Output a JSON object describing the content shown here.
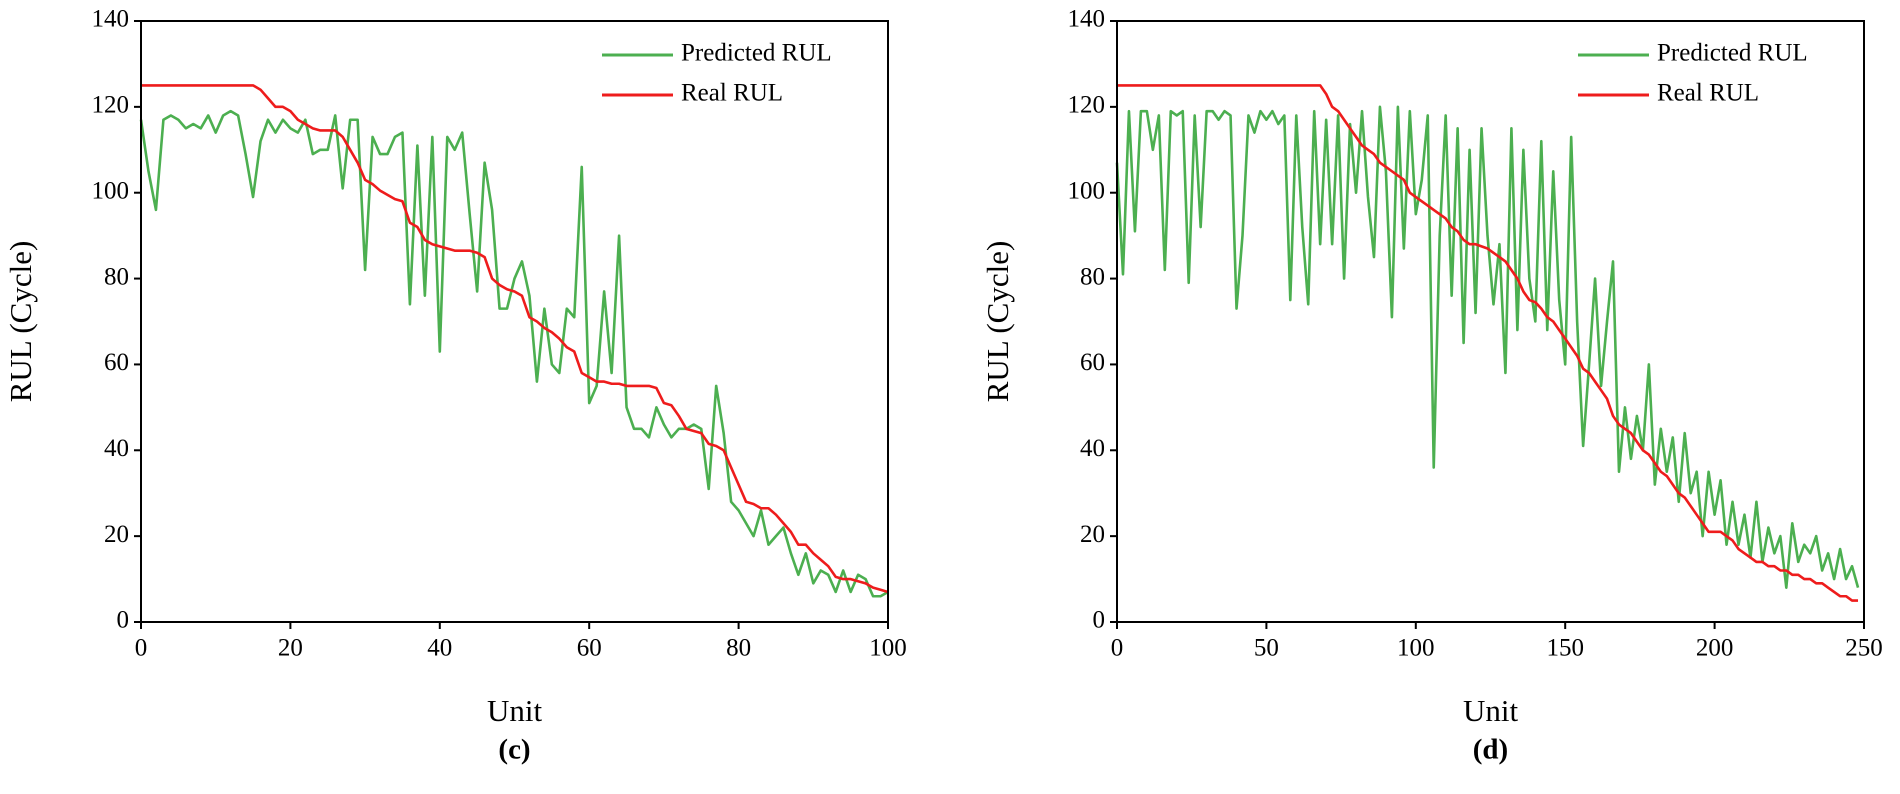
{
  "chart_data": [
    {
      "type": "line",
      "caption": "(c)",
      "xlabel": "Unit",
      "ylabel": "RUL (Cycle)",
      "legend": "upper right",
      "xlim": [
        0,
        100
      ],
      "ylim": [
        0,
        140
      ],
      "xticks": [
        0,
        20,
        40,
        60,
        80,
        100
      ],
      "yticks": [
        0,
        20,
        40,
        60,
        80,
        100,
        120,
        140
      ],
      "x": [
        0,
        1,
        2,
        3,
        4,
        5,
        6,
        7,
        8,
        9,
        10,
        11,
        12,
        13,
        14,
        15,
        16,
        17,
        18,
        19,
        20,
        21,
        22,
        23,
        24,
        25,
        26,
        27,
        28,
        29,
        30,
        31,
        32,
        33,
        34,
        35,
        36,
        37,
        38,
        39,
        40,
        41,
        42,
        43,
        44,
        45,
        46,
        47,
        48,
        49,
        50,
        51,
        52,
        53,
        54,
        55,
        56,
        57,
        58,
        59,
        60,
        61,
        62,
        63,
        64,
        65,
        66,
        67,
        68,
        69,
        70,
        71,
        72,
        73,
        74,
        75,
        76,
        77,
        78,
        79,
        80,
        81,
        82,
        83,
        84,
        85,
        86,
        87,
        88,
        89,
        90,
        91,
        92,
        93,
        94,
        95,
        96,
        97,
        98,
        99,
        100
      ],
      "series": [
        {
          "name": "Predicted RUL",
          "color": "#4caf50",
          "values": [
            117,
            105,
            96,
            117,
            118,
            117,
            115,
            116,
            115,
            118,
            114,
            118,
            119,
            118,
            109,
            99,
            112,
            117,
            114,
            117,
            115,
            114,
            117,
            109,
            110,
            110,
            118,
            101,
            117,
            117,
            82,
            113,
            109,
            109,
            113,
            114,
            74,
            111,
            76,
            113,
            63,
            113,
            110,
            114,
            95,
            77,
            107,
            96,
            73,
            73,
            80,
            84,
            76,
            56,
            73,
            60,
            58,
            73,
            71,
            106,
            51,
            55,
            77,
            58,
            90,
            50,
            45,
            45,
            43,
            50,
            46,
            43,
            45,
            45,
            46,
            45,
            31,
            55,
            44,
            28,
            26,
            23,
            20,
            26,
            18,
            20,
            22,
            16,
            11,
            16,
            9,
            12,
            11,
            7,
            12,
            7,
            11,
            10,
            6,
            6,
            7
          ]
        },
        {
          "name": "Real RUL",
          "color": "#ee1c1c",
          "values": [
            125,
            125,
            125,
            125,
            125,
            125,
            125,
            125,
            125,
            125,
            125,
            125,
            125,
            125,
            125,
            125,
            124,
            122,
            120,
            120,
            119,
            117,
            116,
            115,
            114.5,
            114.5,
            114.5,
            113,
            110,
            107,
            103,
            102,
            100.5,
            99.5,
            98.5,
            98,
            93,
            92,
            89,
            88,
            87.5,
            87,
            86.5,
            86.5,
            86.5,
            86,
            85,
            80,
            78.5,
            77.5,
            77,
            76,
            71,
            70,
            68.5,
            67.5,
            66,
            64,
            63,
            58,
            57,
            56,
            56,
            55.5,
            55.5,
            55,
            55,
            55,
            55,
            54.5,
            51,
            50.5,
            48,
            45,
            44.5,
            44,
            41.5,
            41,
            40,
            36,
            32,
            28,
            27.5,
            26.5,
            26.5,
            25,
            23,
            21,
            18,
            18,
            16,
            14.5,
            13,
            10.5,
            10,
            10,
            9.5,
            9,
            8,
            7.5,
            7
          ]
        }
      ]
    },
    {
      "type": "line",
      "caption": "(d)",
      "xlabel": "Unit",
      "ylabel": "RUL (Cycle)",
      "legend": "upper right",
      "xlim": [
        0,
        250
      ],
      "ylim": [
        0,
        140
      ],
      "xticks": [
        0,
        50,
        100,
        150,
        200,
        250
      ],
      "yticks": [
        0,
        20,
        40,
        60,
        80,
        100,
        120,
        140
      ],
      "x": [
        0,
        2,
        4,
        6,
        8,
        10,
        12,
        14,
        16,
        18,
        20,
        22,
        24,
        26,
        28,
        30,
        32,
        34,
        36,
        38,
        40,
        42,
        44,
        46,
        48,
        50,
        52,
        54,
        56,
        58,
        60,
        62,
        64,
        66,
        68,
        70,
        72,
        74,
        76,
        78,
        80,
        82,
        84,
        86,
        88,
        90,
        92,
        94,
        96,
        98,
        100,
        102,
        104,
        106,
        108,
        110,
        112,
        114,
        116,
        118,
        120,
        122,
        124,
        126,
        128,
        130,
        132,
        134,
        136,
        138,
        140,
        142,
        144,
        146,
        148,
        150,
        152,
        154,
        156,
        158,
        160,
        162,
        164,
        166,
        168,
        170,
        172,
        174,
        176,
        178,
        180,
        182,
        184,
        186,
        188,
        190,
        192,
        194,
        196,
        198,
        200,
        202,
        204,
        206,
        208,
        210,
        212,
        214,
        216,
        218,
        220,
        222,
        224,
        226,
        228,
        230,
        232,
        234,
        236,
        238,
        240,
        242,
        244,
        246,
        248
      ],
      "series": [
        {
          "name": "Predicted RUL",
          "color": "#4caf50",
          "values": [
            107,
            81,
            119,
            91,
            119,
            119,
            110,
            118,
            82,
            119,
            118,
            119,
            79,
            118,
            92,
            119,
            119,
            117,
            119,
            118,
            73,
            90,
            118,
            114,
            119,
            117,
            119,
            116,
            118,
            75,
            118,
            92,
            74,
            119,
            88,
            117,
            88,
            118,
            80,
            116,
            100,
            119,
            99,
            85,
            120,
            105,
            71,
            120,
            87,
            119,
            95,
            103,
            118,
            36,
            90,
            118,
            76,
            115,
            65,
            110,
            72,
            115,
            90,
            74,
            88,
            58,
            115,
            68,
            110,
            80,
            70,
            112,
            68,
            105,
            75,
            60,
            113,
            70,
            41,
            60,
            80,
            55,
            70,
            84,
            35,
            50,
            38,
            48,
            40,
            60,
            32,
            45,
            35,
            43,
            28,
            44,
            30,
            35,
            20,
            35,
            25,
            33,
            18,
            28,
            18,
            25,
            15,
            28,
            14,
            22,
            16,
            20,
            8,
            23,
            14,
            18,
            16,
            20,
            12,
            16,
            10,
            17,
            10,
            13,
            8
          ]
        },
        {
          "name": "Real RUL",
          "color": "#ee1c1c",
          "values": [
            125,
            125,
            125,
            125,
            125,
            125,
            125,
            125,
            125,
            125,
            125,
            125,
            125,
            125,
            125,
            125,
            125,
            125,
            125,
            125,
            125,
            125,
            125,
            125,
            125,
            125,
            125,
            125,
            125,
            125,
            125,
            125,
            125,
            125,
            125,
            123,
            120,
            119,
            117,
            115,
            113,
            111,
            110,
            109,
            107,
            106,
            105,
            104,
            103,
            100,
            99,
            98,
            97,
            96,
            95,
            94,
            92,
            91,
            89,
            88,
            88,
            87.5,
            87,
            86,
            85,
            84,
            82,
            80,
            77,
            75,
            74.5,
            73,
            71,
            70,
            68,
            66,
            64,
            62,
            59,
            58,
            56,
            54,
            52,
            48,
            46,
            45,
            44,
            42,
            40,
            39,
            37,
            35,
            34,
            32,
            30,
            29,
            27,
            25,
            23,
            21,
            21,
            21,
            20,
            19,
            17,
            16,
            15,
            14,
            14,
            13,
            13,
            12,
            12,
            11,
            11,
            10,
            10,
            9,
            9,
            8,
            7,
            6,
            6,
            5,
            5
          ]
        }
      ]
    }
  ]
}
